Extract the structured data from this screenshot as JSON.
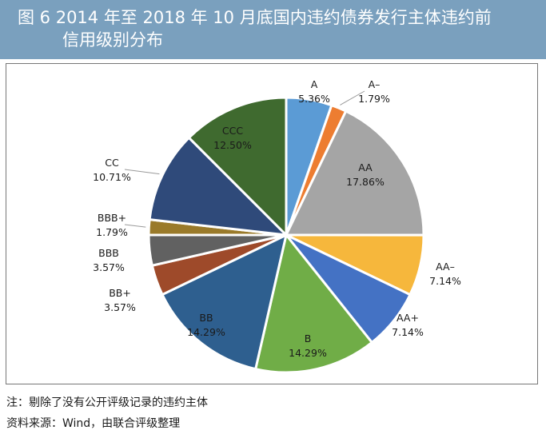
{
  "figure": {
    "title": "图 6  2014 年至 2018 年 10 月底国内违约债券发行主体违约前",
    "title_line2": "信用级别分布"
  },
  "notes": {
    "note": "注：剔除了没有公开评级记录的违约主体",
    "source": "资料来源：Wind，由联合评级整理"
  },
  "chart_data": {
    "type": "pie",
    "title": "图 6  2014 年至 2018 年 10 月底国内违约债券发行主体违约前 信用级别分布",
    "start": "12 o'clock",
    "direction": "clockwise",
    "slices": [
      {
        "label": "A",
        "value": 5.36,
        "text": "5.36%",
        "color": "#5b9bd5"
      },
      {
        "label": "A-",
        "value": 1.79,
        "text": "1.79%",
        "color": "#ed7d31"
      },
      {
        "label": "AA",
        "value": 17.86,
        "text": "17.86%",
        "color": "#a5a5a5"
      },
      {
        "label": "AA-",
        "value": 7.14,
        "text": "7.14%",
        "color": "#f6b73c"
      },
      {
        "label": "AA+",
        "value": 7.14,
        "text": "7.14%",
        "color": "#4472c4"
      },
      {
        "label": "B",
        "value": 14.29,
        "text": "14.29%",
        "color": "#70ad47"
      },
      {
        "label": "BB",
        "value": 14.29,
        "text": "14.29%",
        "color": "#2e5f8f"
      },
      {
        "label": "BB+",
        "value": 3.57,
        "text": "3.57%",
        "color": "#9e4a2a"
      },
      {
        "label": "BBB",
        "value": 3.57,
        "text": "3.57%",
        "color": "#616161"
      },
      {
        "label": "BBB+",
        "value": 1.79,
        "text": "1.79%",
        "color": "#9a7a2a"
      },
      {
        "label": "CC",
        "value": 10.71,
        "text": "10.71%",
        "color": "#2f4a7a"
      },
      {
        "label": "CCC",
        "value": 12.5,
        "text": "12.50%",
        "color": "#3f6a2f"
      }
    ]
  }
}
